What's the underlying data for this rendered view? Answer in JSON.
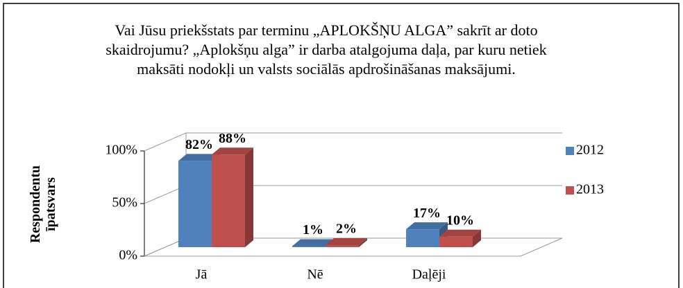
{
  "chart_data": {
    "type": "bar3d",
    "title": "Vai Jūsu priekšstats par terminu „APLOKŠŅU ALGA” sakrīt ar doto skaidrojumu? „Aplokšņu alga” ir darba atalgojuma daļa, par kuru netiek maksāti nodokļi un valsts sociālās apdrošināšanas maksājumi.",
    "y_label": "Respondentu īpatsvars",
    "categories": [
      "Jā",
      "Nē",
      "Daļēji"
    ],
    "series": [
      {
        "name": "2012",
        "color": "#4f81bd",
        "values": [
          82,
          1,
          17
        ],
        "value_labels": [
          "82%",
          "1%",
          "17%"
        ]
      },
      {
        "name": "2013",
        "color": "#c0504d",
        "values": [
          88,
          2,
          10
        ],
        "value_labels": [
          "88%",
          "2%",
          "10%"
        ]
      }
    ],
    "ylim": [
      0,
      100
    ],
    "yticks": [
      {
        "value": 0,
        "label": "0%"
      },
      {
        "value": 50,
        "label": "50%"
      },
      {
        "value": 100,
        "label": "100%"
      }
    ],
    "grid": true,
    "legend": "right"
  }
}
